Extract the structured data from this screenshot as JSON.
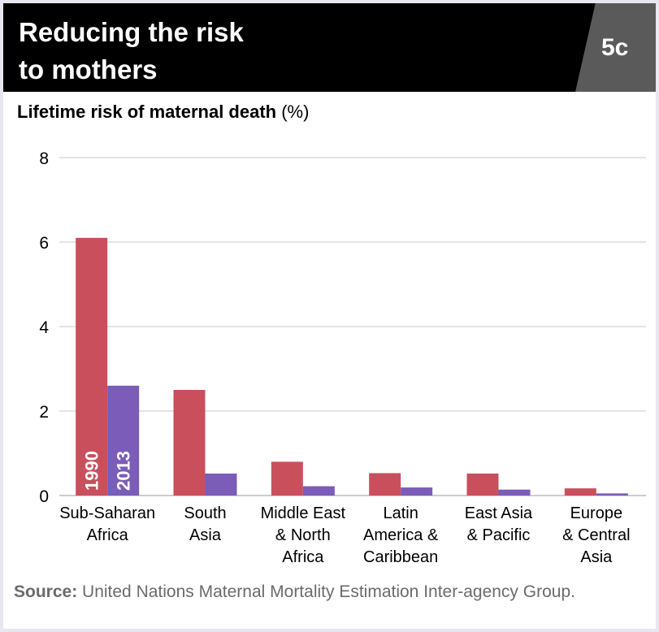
{
  "header": {
    "title_line1": "Reducing the risk",
    "title_line2": "to mothers",
    "badge": "5c"
  },
  "subtitle": {
    "main": "Lifetime risk of maternal death",
    "unit": "(%)"
  },
  "source": {
    "label": "Source:",
    "text": "United Nations Maternal Mortality Estimation Inter-agency Group."
  },
  "colors": {
    "series_1990": "#c94f5d",
    "series_2013": "#7b5cb8",
    "gridline": "#c8c8c8",
    "header_bg": "#000000",
    "badge_bg": "#5a5a5a"
  },
  "chart_data": {
    "type": "bar",
    "title": "Lifetime risk of maternal death (%)",
    "xlabel": "",
    "ylabel": "Lifetime risk of maternal death (%)",
    "ylim": [
      0,
      8
    ],
    "yticks": [
      0,
      2,
      4,
      6,
      8
    ],
    "grid": true,
    "categories": [
      [
        "Sub-Saharan",
        "Africa"
      ],
      [
        "South",
        "Asia"
      ],
      [
        "Middle East",
        "& North",
        "Africa"
      ],
      [
        "Latin",
        "America &",
        "Caribbean"
      ],
      [
        "East Asia",
        "& Pacific"
      ],
      [
        "Europe",
        "& Central",
        "Asia"
      ]
    ],
    "series": [
      {
        "name": "1990",
        "values": [
          6.1,
          2.5,
          0.8,
          0.53,
          0.52,
          0.17
        ]
      },
      {
        "name": "2013",
        "values": [
          2.6,
          0.52,
          0.22,
          0.19,
          0.14,
          0.05
        ]
      }
    ],
    "series_labels_in_first_group": [
      "1990",
      "2013"
    ]
  }
}
